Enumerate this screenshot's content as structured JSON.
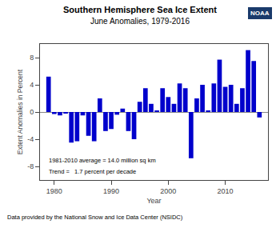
{
  "chart_data": {
    "type": "bar",
    "title": "Southern Hemisphere Sea Ice Extent",
    "subtitle": "June Anomalies, 1979-2016",
    "xlabel": "Year",
    "ylabel": "Extent Anomalies in Percent",
    "x": [
      1979,
      1980,
      1981,
      1982,
      1983,
      1984,
      1985,
      1986,
      1987,
      1988,
      1989,
      1990,
      1991,
      1992,
      1993,
      1994,
      1995,
      1996,
      1997,
      1998,
      1999,
      2000,
      2001,
      2002,
      2003,
      2004,
      2005,
      2006,
      2007,
      2008,
      2009,
      2010,
      2011,
      2012,
      2013,
      2014,
      2015,
      2016
    ],
    "values": [
      5.2,
      -0.3,
      -0.5,
      -0.2,
      -4.5,
      -4.3,
      -0.5,
      -3.5,
      -4.3,
      2.0,
      -2.8,
      -2.5,
      -0.4,
      0.5,
      -2.8,
      -4.0,
      1.5,
      3.5,
      1.2,
      0.2,
      3.5,
      2.2,
      1.2,
      4.2,
      3.5,
      -6.8,
      2.0,
      4.0,
      0.2,
      4.2,
      7.7,
      3.7,
      4.0,
      1.2,
      3.5,
      9.1,
      7.5,
      -0.8
    ],
    "color": "#0000CC",
    "xlim": [
      1977.5,
      2017.5
    ],
    "xticks": [
      1980,
      1990,
      2000,
      2010
    ],
    "ylim": [
      -10,
      10
    ],
    "yticks": [
      -8,
      -4,
      0,
      4,
      8
    ],
    "grid": false,
    "annotations": [
      "1981-2010 average = 14.0 million sq km",
      "Trend =   1.7 percent per decade",
      "NOAA"
    ],
    "footnote": "Data provided by the National Snow and Ice Data Center (NSIDC)"
  }
}
